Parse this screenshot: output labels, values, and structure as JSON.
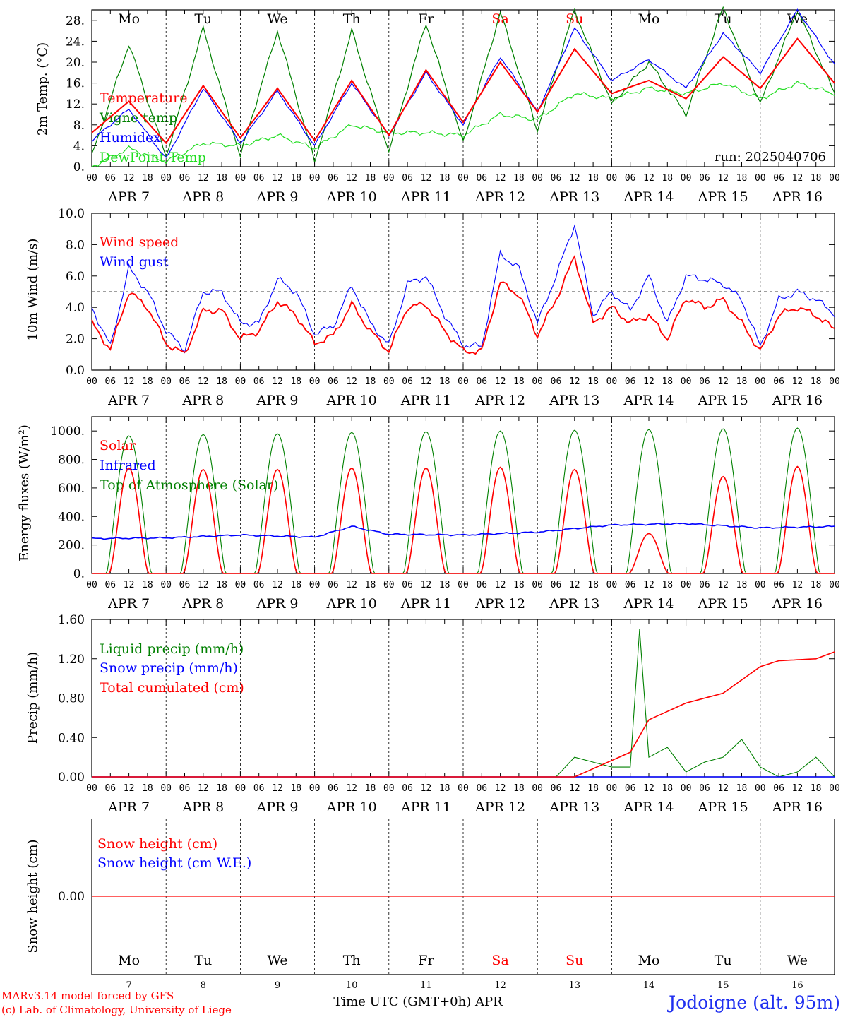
{
  "colors": {
    "red": "#ff0000",
    "green": "#008000",
    "blue": "#0000ff",
    "lightgreen": "#22dd22",
    "darkgreen": "#1a7a1a",
    "axis": "#000000",
    "station": "#1f2ff0"
  },
  "days": [
    "Mo",
    "Tu",
    "We",
    "Th",
    "Fr",
    "Sa",
    "Su",
    "Mo",
    "Tu",
    "We"
  ],
  "weekend_days": [
    5,
    6
  ],
  "dates": [
    "APR  7",
    "APR  8",
    "APR  9",
    "APR 10",
    "APR 11",
    "APR 12",
    "APR 13",
    "APR 14",
    "APR 15",
    "APR 16"
  ],
  "day_numbers": [
    "7",
    "8",
    "9",
    "10",
    "11",
    "12",
    "13",
    "14",
    "15",
    "16"
  ],
  "hour_ticks": [
    "00",
    "06",
    "12",
    "18"
  ],
  "run_label": "run: 2025040706",
  "footer": {
    "line1": "MARv3.14 model forced by GFS",
    "line2": "(c) Lab. of Climatology, University of Liege",
    "axis_title": "Time UTC (GMT+0h) APR",
    "station": "Jodoigne (alt. 95m)"
  },
  "chart_data": [
    {
      "type": "line",
      "ylabel": "2m Temp. (°C)",
      "ylim": [
        0,
        30
      ],
      "yticks": [
        "0.",
        "4.",
        "8.",
        "12.",
        "16.",
        "20.",
        "24.",
        "28."
      ],
      "grid": "dotted day separators",
      "series": [
        {
          "name": "Temperature",
          "color": "red",
          "x_hours": [
            0,
            12,
            24,
            36,
            48,
            60,
            72,
            84,
            96,
            108,
            120,
            132,
            144,
            156,
            168,
            180,
            192,
            204,
            216,
            228,
            240
          ],
          "values": [
            6.5,
            12.5,
            4.5,
            15.5,
            5.5,
            15,
            5,
            16.5,
            6,
            18.5,
            8.5,
            20,
            10.5,
            22.5,
            14,
            16.5,
            13,
            21,
            15,
            24.5,
            16
          ]
        },
        {
          "name": "Vigne temp",
          "color": "green",
          "x_hours": [
            0,
            12,
            24,
            36,
            48,
            60,
            72,
            84,
            96,
            108,
            120,
            132,
            144,
            156,
            168,
            180,
            192,
            204,
            216,
            228,
            240
          ],
          "values": [
            2,
            23.5,
            2,
            26.5,
            2,
            26,
            1,
            26,
            3,
            27.5,
            4.5,
            29.5,
            7,
            30,
            12,
            20,
            10,
            30.5,
            12,
            30,
            14
          ]
        },
        {
          "name": "Humidex",
          "color": "blue",
          "x_hours": [
            0,
            12,
            24,
            36,
            48,
            60,
            72,
            84,
            96,
            108,
            120,
            132,
            144,
            156,
            168,
            180,
            192,
            204,
            216,
            228,
            240
          ],
          "values": [
            5,
            11,
            1.5,
            15,
            4.5,
            14.5,
            4,
            16,
            6,
            18,
            8,
            21,
            10.5,
            26.5,
            16.5,
            20.5,
            15,
            25.5,
            18,
            30,
            19.5
          ]
        },
        {
          "name": "DewPoint Temp",
          "color": "lightgreen",
          "x_hours": [
            0,
            12,
            24,
            36,
            48,
            60,
            72,
            84,
            96,
            108,
            120,
            132,
            144,
            156,
            168,
            180,
            192,
            204,
            216,
            228,
            240
          ],
          "values": [
            0,
            3.5,
            1,
            4.5,
            4,
            6,
            3.5,
            8,
            6.5,
            6.5,
            6,
            10,
            9,
            14,
            13,
            15,
            14,
            16,
            13,
            16,
            14
          ]
        }
      ]
    },
    {
      "type": "line",
      "ylabel": "10m Wind (m/s)",
      "ylim": [
        0,
        10
      ],
      "yticks": [
        "0.0",
        "2.0",
        "4.0",
        "6.0",
        "8.0",
        "10.0"
      ],
      "reference_line": 5,
      "series": [
        {
          "name": "Wind speed",
          "color": "red",
          "x_hours": [
            0,
            6,
            12,
            18,
            24,
            30,
            36,
            42,
            48,
            54,
            60,
            66,
            72,
            78,
            84,
            90,
            96,
            102,
            108,
            114,
            120,
            126,
            132,
            138,
            144,
            150,
            156,
            162,
            168,
            174,
            180,
            186,
            192,
            198,
            204,
            210,
            216,
            222,
            228,
            234,
            240
          ],
          "values": [
            3,
            1.3,
            5,
            4,
            1.7,
            1,
            3.8,
            3.8,
            2,
            2.5,
            4.4,
            3.5,
            1.7,
            2.2,
            4.2,
            2.5,
            1.2,
            4,
            4.2,
            2.5,
            1.2,
            1.2,
            5.6,
            4.8,
            2.2,
            4.5,
            7.2,
            3,
            4,
            3,
            3.5,
            2,
            4.6,
            4,
            4.5,
            3,
            1.2,
            3.5,
            4,
            3.5,
            2.6
          ]
        },
        {
          "name": "Wind gust",
          "color": "blue",
          "x_hours": [
            0,
            6,
            12,
            18,
            24,
            30,
            36,
            42,
            48,
            54,
            60,
            66,
            72,
            78,
            84,
            90,
            96,
            102,
            108,
            114,
            120,
            126,
            132,
            138,
            144,
            150,
            156,
            162,
            168,
            174,
            180,
            186,
            192,
            198,
            204,
            210,
            216,
            222,
            228,
            234,
            240
          ],
          "values": [
            4,
            1.5,
            6.5,
            5,
            2.5,
            1.3,
            5,
            5,
            3,
            3,
            5.8,
            5,
            2.3,
            2.8,
            5.4,
            3,
            1.6,
            5.5,
            6,
            3.5,
            1.6,
            1.5,
            7.4,
            6.5,
            3,
            6,
            9.3,
            3.5,
            5,
            3.8,
            6,
            3,
            6,
            5.8,
            5.5,
            4.5,
            1.5,
            4.5,
            5,
            4.5,
            3.6
          ]
        }
      ]
    },
    {
      "type": "line",
      "ylabel": "Energy fluxes (W/m²)",
      "ylim": [
        0,
        1100
      ],
      "yticks": [
        "0.",
        "200.",
        "400.",
        "600.",
        "800.",
        "1000."
      ],
      "series": [
        {
          "name": "Solar",
          "color": "red",
          "peak_per_day": [
            740,
            730,
            730,
            740,
            740,
            745,
            730,
            280,
            680,
            750
          ]
        },
        {
          "name": "Infrared",
          "color": "blue",
          "x_hours": [
            0,
            24,
            48,
            72,
            84,
            96,
            120,
            144,
            168,
            192,
            216,
            240
          ],
          "values": [
            245,
            250,
            270,
            255,
            330,
            275,
            270,
            290,
            340,
            350,
            320,
            330
          ]
        },
        {
          "name": "Top of Atmosphere (Solar)",
          "color": "green",
          "peak_per_day": [
            965,
            975,
            980,
            990,
            995,
            1000,
            1005,
            1010,
            1015,
            1020
          ]
        }
      ]
    },
    {
      "type": "line",
      "ylabel": "Precip (mm/h)",
      "ylim": [
        0,
        1.6
      ],
      "yticks": [
        "0.00",
        "0.40",
        "0.80",
        "1.20",
        "1.60"
      ],
      "series": [
        {
          "name": "Liquid precip (mm/h)",
          "color": "green",
          "x_hours": [
            0,
            150,
            156,
            162,
            168,
            174,
            177,
            180,
            186,
            192,
            198,
            204,
            210,
            216,
            222,
            228,
            234,
            240
          ],
          "values": [
            0,
            0,
            0.2,
            0.15,
            0.1,
            0.1,
            1.5,
            0.2,
            0.3,
            0.05,
            0.15,
            0.2,
            0.38,
            0.1,
            0,
            0.05,
            0.2,
            0
          ]
        },
        {
          "name": "Snow precip (mm/h)",
          "color": "blue",
          "x_hours": [
            0,
            240
          ],
          "values": [
            0,
            0
          ]
        },
        {
          "name": "Total cumulated (cm)",
          "color": "red",
          "x_hours": [
            0,
            156,
            174,
            180,
            192,
            204,
            216,
            222,
            228,
            234,
            240
          ],
          "values": [
            0,
            0,
            0.25,
            0.58,
            0.75,
            0.85,
            1.12,
            1.18,
            1.19,
            1.2,
            1.27
          ]
        }
      ]
    },
    {
      "type": "line",
      "ylabel": "Snow height (cm)",
      "yticks": [
        "0.00"
      ],
      "series": [
        {
          "name": "Snow height (cm)",
          "color": "red",
          "x_hours": [
            0,
            240
          ],
          "values": [
            0,
            0
          ]
        },
        {
          "name": "Snow height (cm W.E.)",
          "color": "blue",
          "x_hours": [
            0,
            240
          ],
          "values": [
            0,
            0
          ]
        }
      ]
    }
  ]
}
